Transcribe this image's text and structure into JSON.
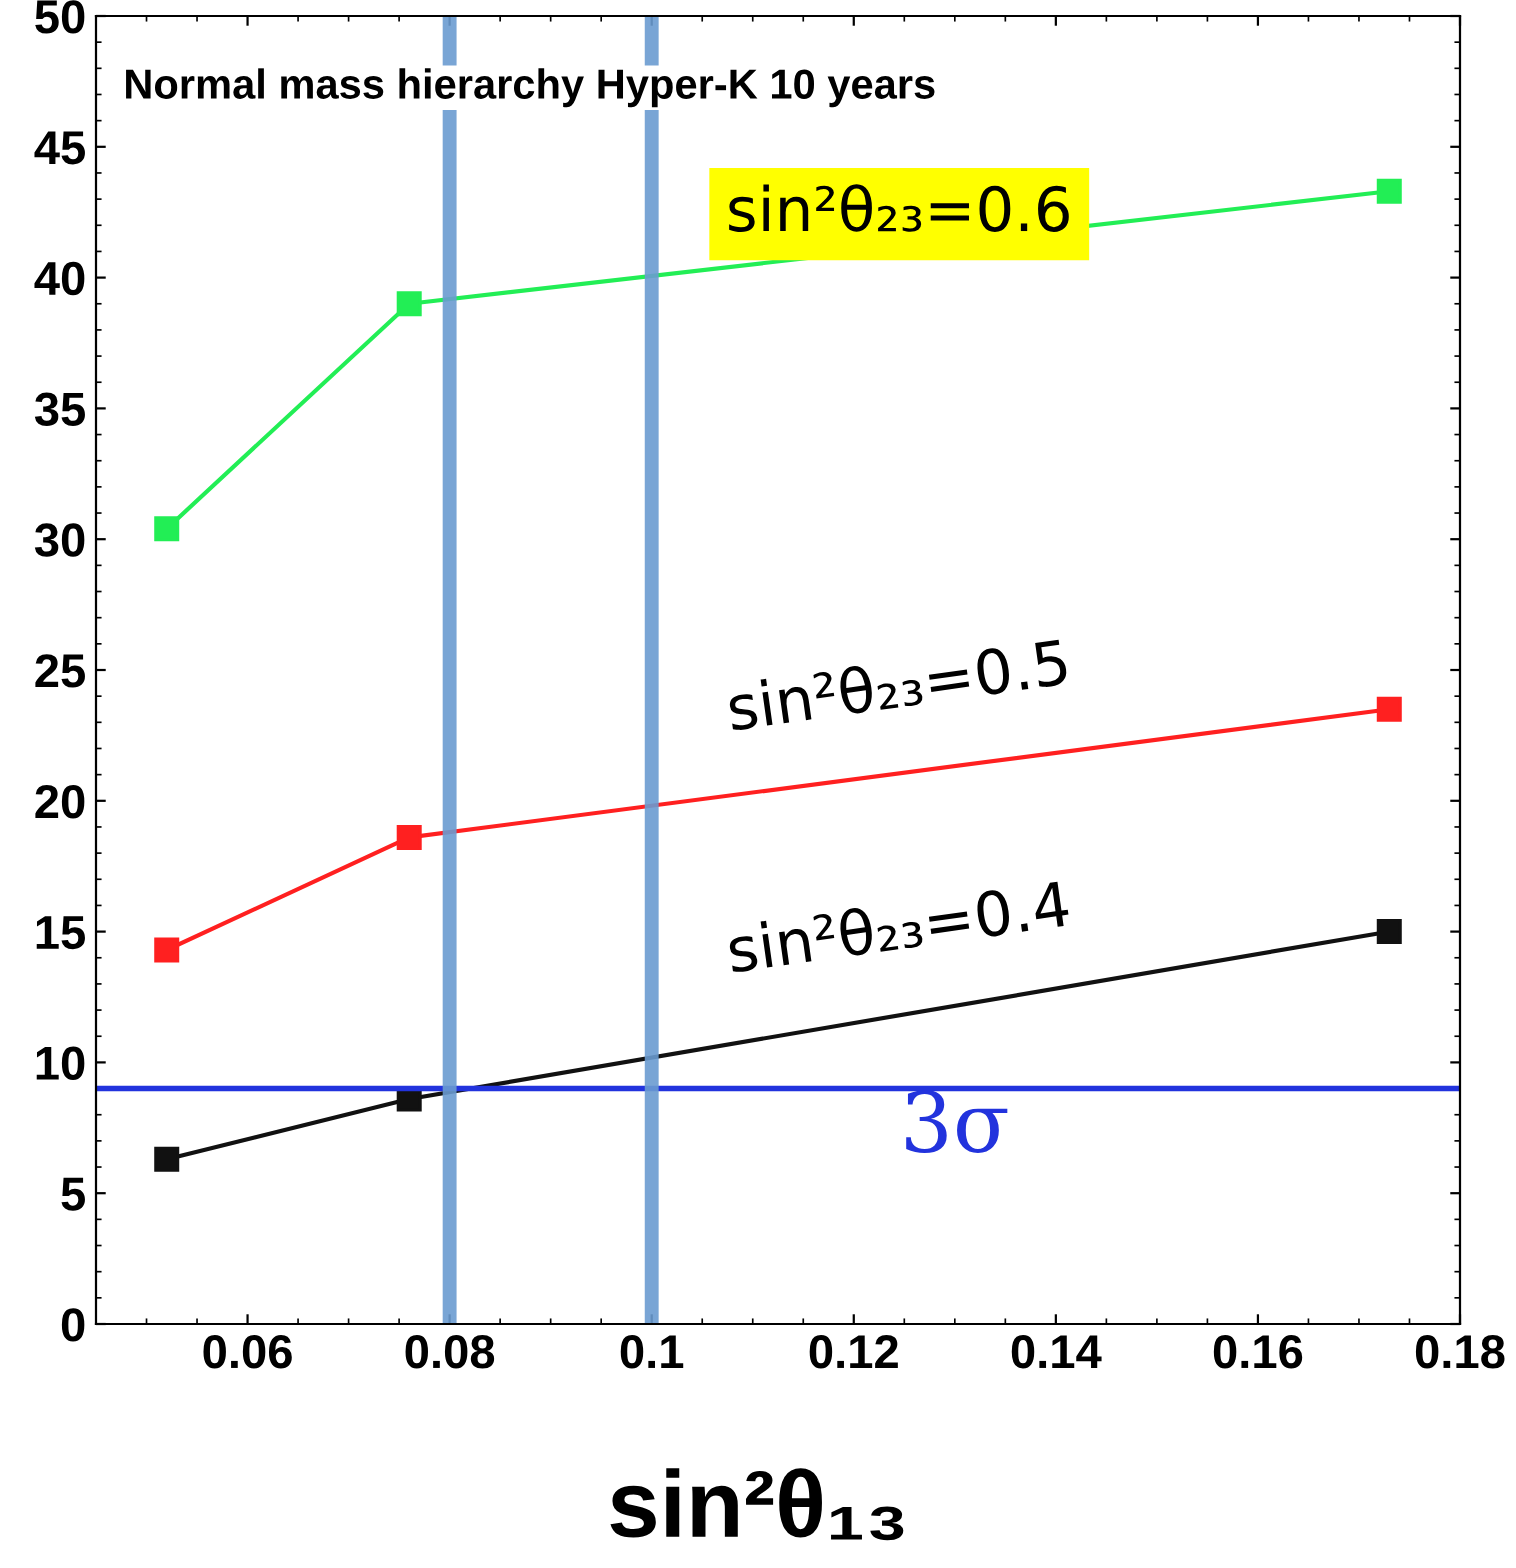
{
  "chart_data": {
    "type": "line",
    "title": "Normal mass hierarchy Hyper-K 10 years",
    "xlabel": "sin²θ₁₃",
    "x": [
      0.052,
      0.076,
      0.173
    ],
    "series": [
      {
        "name": "sin²θ₂₃=0.6",
        "color": "#22ee55",
        "values": [
          30.4,
          39.0,
          43.3
        ]
      },
      {
        "name": "sin²θ₂₃=0.5",
        "color": "#ff2020",
        "values": [
          14.3,
          18.6,
          23.5
        ]
      },
      {
        "name": "sin²θ₂₃=0.4",
        "color": "#111111",
        "values": [
          6.3,
          8.6,
          15.0
        ]
      }
    ],
    "xlim": [
      0.045,
      0.18
    ],
    "ylim": [
      0,
      50
    ],
    "xticks": [
      0.06,
      0.08,
      0.1,
      0.12,
      0.14,
      0.16,
      0.18
    ],
    "yticks": [
      0,
      5,
      10,
      15,
      20,
      25,
      30,
      35,
      40,
      45,
      50
    ],
    "ref_lines": [
      {
        "axis": "y",
        "value": 9,
        "label": "3σ",
        "color": "#2233dd"
      },
      {
        "axis": "x",
        "value": 0.08,
        "color": "#6a9bd0"
      },
      {
        "axis": "x",
        "value": 0.1,
        "color": "#6a9bd0"
      }
    ],
    "marker": "square",
    "line_style": "solid",
    "grid": false,
    "legend": false
  }
}
